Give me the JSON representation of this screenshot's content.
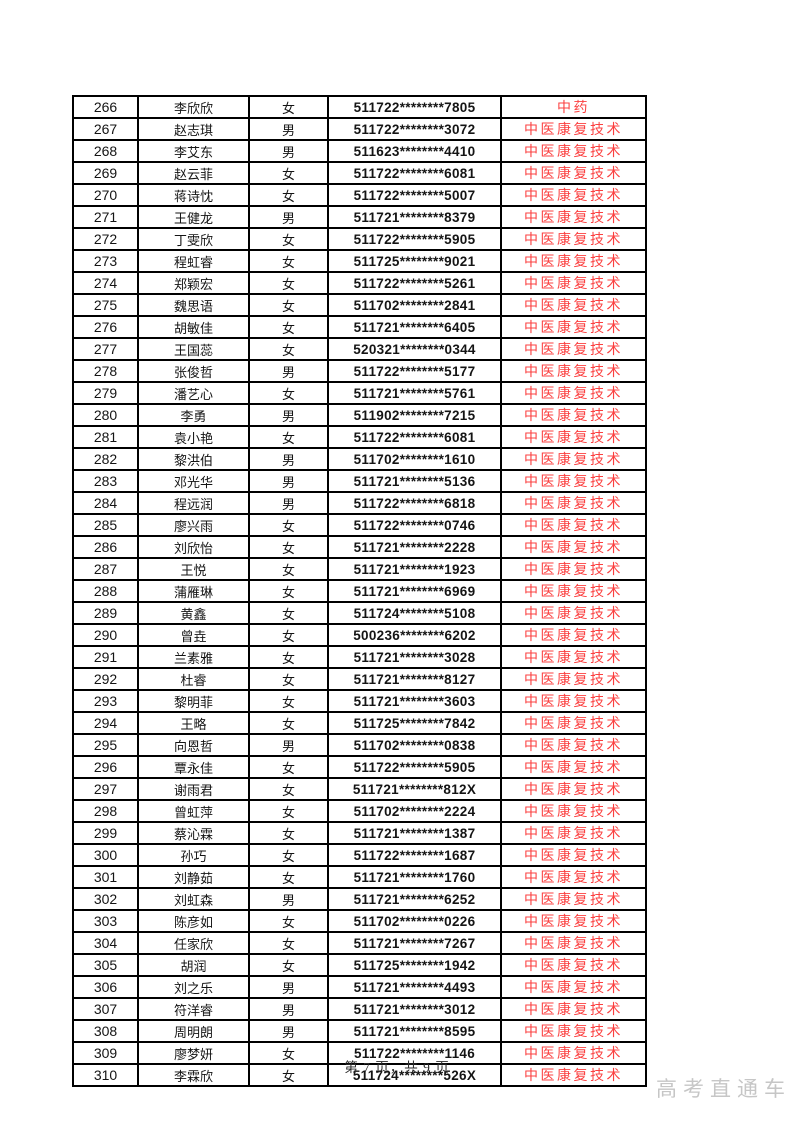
{
  "colors": {
    "major_red": "#fb4040",
    "body_text": "#141414",
    "watermark_gray": "#c6c6c6",
    "border_black": "#000000"
  },
  "table": {
    "rows": [
      [
        "266",
        "李欣欣",
        "女",
        "511722********7805",
        "中药"
      ],
      [
        "267",
        "赵志琪",
        "男",
        "511722********3072",
        "中医康复技术"
      ],
      [
        "268",
        "李艾东",
        "男",
        "511623********4410",
        "中医康复技术"
      ],
      [
        "269",
        "赵云菲",
        "女",
        "511722********6081",
        "中医康复技术"
      ],
      [
        "270",
        "蒋诗忱",
        "女",
        "511722********5007",
        "中医康复技术"
      ],
      [
        "271",
        "王健龙",
        "男",
        "511721********8379",
        "中医康复技术"
      ],
      [
        "272",
        "丁雯欣",
        "女",
        "511722********5905",
        "中医康复技术"
      ],
      [
        "273",
        "程虹睿",
        "女",
        "511725********9021",
        "中医康复技术"
      ],
      [
        "274",
        "郑颖宏",
        "女",
        "511722********5261",
        "中医康复技术"
      ],
      [
        "275",
        "魏思语",
        "女",
        "511702********2841",
        "中医康复技术"
      ],
      [
        "276",
        "胡敏佳",
        "女",
        "511721********6405",
        "中医康复技术"
      ],
      [
        "277",
        "王国蕊",
        "女",
        "520321********0344",
        "中医康复技术"
      ],
      [
        "278",
        "张俊哲",
        "男",
        "511722********5177",
        "中医康复技术"
      ],
      [
        "279",
        "潘艺心",
        "女",
        "511721********5761",
        "中医康复技术"
      ],
      [
        "280",
        "李勇",
        "男",
        "511902********7215",
        "中医康复技术"
      ],
      [
        "281",
        "袁小艳",
        "女",
        "511722********6081",
        "中医康复技术"
      ],
      [
        "282",
        "黎洪伯",
        "男",
        "511702********1610",
        "中医康复技术"
      ],
      [
        "283",
        "邓光华",
        "男",
        "511721********5136",
        "中医康复技术"
      ],
      [
        "284",
        "程远润",
        "男",
        "511722********6818",
        "中医康复技术"
      ],
      [
        "285",
        "廖兴雨",
        "女",
        "511722********0746",
        "中医康复技术"
      ],
      [
        "286",
        "刘欣怡",
        "女",
        "511721********2228",
        "中医康复技术"
      ],
      [
        "287",
        "王悦",
        "女",
        "511721********1923",
        "中医康复技术"
      ],
      [
        "288",
        "蒲雁琳",
        "女",
        "511721********6969",
        "中医康复技术"
      ],
      [
        "289",
        "黄鑫",
        "女",
        "511724********5108",
        "中医康复技术"
      ],
      [
        "290",
        "曾垚",
        "女",
        "500236********6202",
        "中医康复技术"
      ],
      [
        "291",
        "兰素雅",
        "女",
        "511721********3028",
        "中医康复技术"
      ],
      [
        "292",
        "杜睿",
        "女",
        "511721********8127",
        "中医康复技术"
      ],
      [
        "293",
        "黎明菲",
        "女",
        "511721********3603",
        "中医康复技术"
      ],
      [
        "294",
        "王略",
        "女",
        "511725********7842",
        "中医康复技术"
      ],
      [
        "295",
        "向恩哲",
        "男",
        "511702********0838",
        "中医康复技术"
      ],
      [
        "296",
        "覃永佳",
        "女",
        "511722********5905",
        "中医康复技术"
      ],
      [
        "297",
        "谢雨君",
        "女",
        "511721********812X",
        "中医康复技术"
      ],
      [
        "298",
        "曾虹萍",
        "女",
        "511702********2224",
        "中医康复技术"
      ],
      [
        "299",
        "蔡沁霖",
        "女",
        "511721********1387",
        "中医康复技术"
      ],
      [
        "300",
        "孙巧",
        "女",
        "511722********1687",
        "中医康复技术"
      ],
      [
        "301",
        "刘静茹",
        "女",
        "511721********1760",
        "中医康复技术"
      ],
      [
        "302",
        "刘虹森",
        "男",
        "511721********6252",
        "中医康复技术"
      ],
      [
        "303",
        "陈彦如",
        "女",
        "511702********0226",
        "中医康复技术"
      ],
      [
        "304",
        "任家欣",
        "女",
        "511721********7267",
        "中医康复技术"
      ],
      [
        "305",
        "胡润",
        "女",
        "511725********1942",
        "中医康复技术"
      ],
      [
        "306",
        "刘之乐",
        "男",
        "511721********4493",
        "中医康复技术"
      ],
      [
        "307",
        "符洋睿",
        "男",
        "511721********3012",
        "中医康复技术"
      ],
      [
        "308",
        "周明朗",
        "男",
        "511721********8595",
        "中医康复技术"
      ],
      [
        "309",
        "廖梦妍",
        "女",
        "511722********1146",
        "中医康复技术"
      ],
      [
        "310",
        "李霖欣",
        "女",
        "511724********526X",
        "中医康复技术"
      ]
    ]
  },
  "footer": {
    "page_info": "第 7 页，共 9 页"
  },
  "watermark": {
    "text": "高考直通车"
  }
}
